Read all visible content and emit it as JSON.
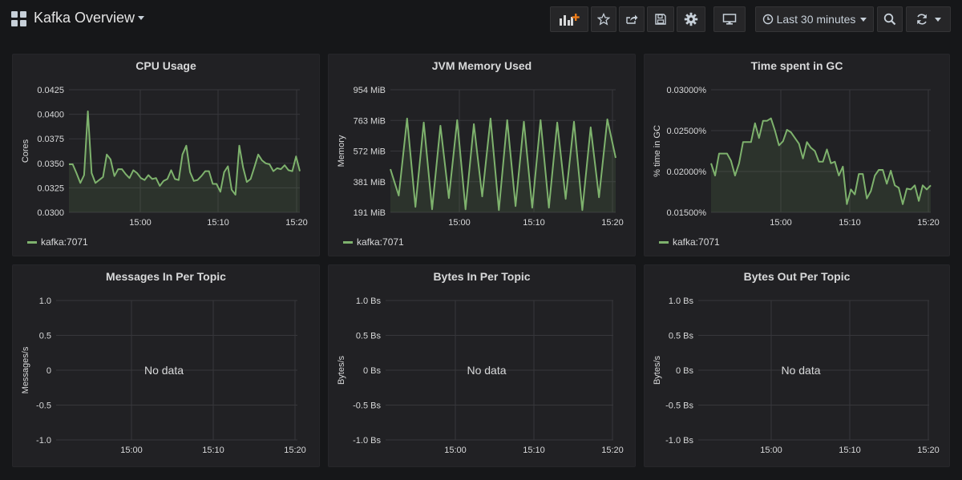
{
  "header": {
    "title": "Kafka Overview",
    "time_range": "Last 30 minutes"
  },
  "colors": {
    "series": "#7eb26d",
    "grid": "#37373b",
    "panel": "#212124"
  },
  "icons": [
    "dashboard-grid-icon",
    "add-panel-icon",
    "star-icon",
    "share-icon",
    "save-icon",
    "settings-gear-icon",
    "tv-mode-icon",
    "clock-icon",
    "zoom-out-icon",
    "refresh-icon"
  ],
  "panels": [
    {
      "title": "CPU Usage",
      "ylabel": "Cores",
      "yticks": [
        "0.0425",
        "0.0400",
        "0.0375",
        "0.0350",
        "0.0325",
        "0.0300"
      ],
      "xticks": [
        "15:00",
        "15:10",
        "15:20"
      ],
      "legend": "kafka:7071",
      "no_data": ""
    },
    {
      "title": "JVM Memory Used",
      "ylabel": "Memory",
      "yticks": [
        "954 MiB",
        "763 MiB",
        "572 MiB",
        "381 MiB",
        "191 MiB"
      ],
      "xticks": [
        "15:00",
        "15:10",
        "15:20"
      ],
      "legend": "kafka:7071",
      "no_data": ""
    },
    {
      "title": "Time spent in GC",
      "ylabel": "% time in GC",
      "yticks": [
        "0.03000%",
        "0.02500%",
        "0.02000%",
        "0.01500%"
      ],
      "xticks": [
        "15:00",
        "15:10",
        "15:20"
      ],
      "legend": "kafka:7071",
      "no_data": ""
    },
    {
      "title": "Messages In Per Topic",
      "ylabel": "Messages/s",
      "yticks": [
        "1.0",
        "0.5",
        "0",
        "-0.5",
        "-1.0"
      ],
      "xticks": [
        "15:00",
        "15:10",
        "15:20"
      ],
      "legend": "",
      "no_data": "No data"
    },
    {
      "title": "Bytes In Per Topic",
      "ylabel": "Bytes/s",
      "yticks": [
        "1.0 Bs",
        "0.5 Bs",
        "0 Bs",
        "-0.5 Bs",
        "-1.0 Bs"
      ],
      "xticks": [
        "15:00",
        "15:10",
        "15:20"
      ],
      "legend": "",
      "no_data": "No data"
    },
    {
      "title": "Bytes Out Per Topic",
      "ylabel": "Bytes/s",
      "yticks": [
        "1.0 Bs",
        "0.5 Bs",
        "0 Bs",
        "-0.5 Bs",
        "-1.0 Bs"
      ],
      "xticks": [
        "15:00",
        "15:10",
        "15:20"
      ],
      "legend": "",
      "no_data": "No data"
    }
  ],
  "chart_data": [
    {
      "type": "line",
      "title": "CPU Usage",
      "ylabel": "Cores",
      "ylim": [
        0.03,
        0.0425
      ],
      "x_range_minutes": [
        0,
        30
      ],
      "x_tick_minutes": {
        "15:00": 9,
        "15:10": 19,
        "15:20": 29
      },
      "series": [
        {
          "name": "kafka:7071",
          "values": [
            0.0349,
            0.0349,
            0.034,
            0.033,
            0.0338,
            0.0403,
            0.034,
            0.033,
            0.0333,
            0.0336,
            0.0359,
            0.0354,
            0.0337,
            0.0344,
            0.0344,
            0.0339,
            0.0335,
            0.0343,
            0.034,
            0.0335,
            0.0333,
            0.0338,
            0.0334,
            0.0335,
            0.0327,
            0.0332,
            0.0334,
            0.0343,
            0.0334,
            0.0333,
            0.0359,
            0.0368,
            0.0341,
            0.0332,
            0.0333,
            0.0337,
            0.0342,
            0.0342,
            0.0329,
            0.0329,
            0.0321,
            0.0341,
            0.0347,
            0.0323,
            0.0318,
            0.0368,
            0.0346,
            0.0331,
            0.0334,
            0.0346,
            0.0359,
            0.0353,
            0.035,
            0.0349,
            0.0342,
            0.0345,
            0.0344,
            0.0348,
            0.0343,
            0.0342,
            0.0357,
            0.0342
          ]
        }
      ]
    },
    {
      "type": "line",
      "title": "JVM Memory Used",
      "ylabel": "Memory",
      "ylim_mib": [
        191,
        954
      ],
      "series": [
        {
          "name": "kafka:7071",
          "values_mib": [
            460,
            295,
            775,
            225,
            750,
            210,
            730,
            280,
            765,
            210,
            740,
            290,
            775,
            205,
            765,
            230,
            755,
            220,
            765,
            220,
            750,
            275,
            755,
            205,
            720,
            285,
            770,
            530
          ]
        }
      ]
    },
    {
      "type": "line",
      "title": "Time spent in GC",
      "ylabel": "% time in GC",
      "ylim_percent": [
        0.015,
        0.03
      ],
      "series": [
        {
          "name": "kafka:7071",
          "values_percent": [
            0.021,
            0.0195,
            0.0222,
            0.0222,
            0.0222,
            0.0213,
            0.0195,
            0.021,
            0.0236,
            0.0236,
            0.0236,
            0.0259,
            0.0241,
            0.0262,
            0.0262,
            0.0265,
            0.025,
            0.0232,
            0.0237,
            0.0251,
            0.0248,
            0.0241,
            0.0234,
            0.0216,
            0.0236,
            0.0229,
            0.0225,
            0.0212,
            0.0212,
            0.0227,
            0.021,
            0.0212,
            0.0195,
            0.0206,
            0.016,
            0.0178,
            0.0172,
            0.0197,
            0.0197,
            0.0167,
            0.0176,
            0.0195,
            0.0202,
            0.0202,
            0.0185,
            0.0201,
            0.0183,
            0.018,
            0.016,
            0.0179,
            0.0178,
            0.0183,
            0.0164,
            0.0183,
            0.0178,
            0.0183
          ]
        }
      ]
    },
    {
      "type": "line",
      "title": "Messages In Per Topic",
      "ylabel": "Messages/s",
      "ylim": [
        -1,
        1
      ],
      "series": []
    },
    {
      "type": "line",
      "title": "Bytes In Per Topic",
      "ylabel": "Bytes/s",
      "ylim": [
        -1,
        1
      ],
      "series": []
    },
    {
      "type": "line",
      "title": "Bytes Out Per Topic",
      "ylabel": "Bytes/s",
      "ylim": [
        -1,
        1
      ],
      "series": []
    }
  ]
}
